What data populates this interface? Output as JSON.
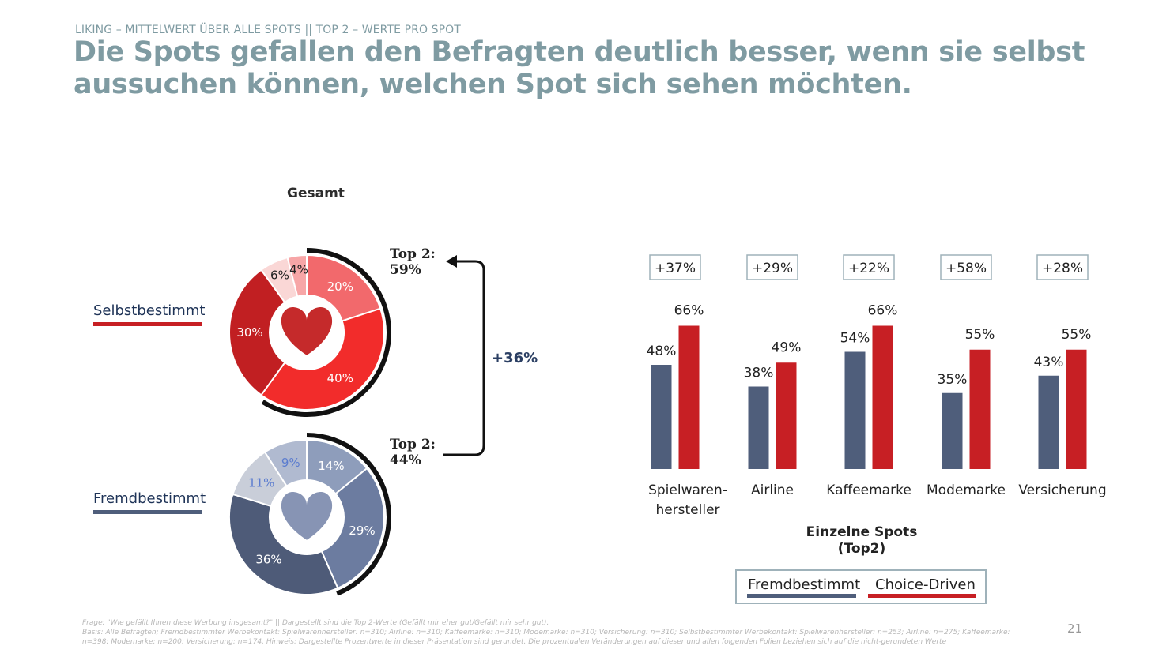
{
  "header": {
    "kicker": "LIKING – MITTELWERT ÜBER ALLE SPOTS || TOP 2 – WERTE PRO SPOT",
    "headline_line1": "Die Spots gefallen den Befragten deutlich besser, wenn sie selbst",
    "headline_line2": "aussuchen können, welchen Spot sich sehen möchten."
  },
  "overview": {
    "title": "Gesamt",
    "selbst_label": "Selbstbestimmt",
    "fremd_label": "Fremdbestimmt",
    "top2_selbst_line1": "Top 2:",
    "top2_selbst_line2": "59%",
    "top2_fremd_line1": "Top 2:",
    "top2_fremd_line2": "44%",
    "delta": "+36%"
  },
  "colors": {
    "fremd": "#4f5e7b",
    "choice": "#c71f24",
    "title_teal": "#7f9ba2",
    "selbst_slices": [
      "#f2696c",
      "#f22c2b",
      "#c11f22",
      "#fad7d6",
      "#f7a6a7"
    ],
    "fremd_slices": [
      "#8e9dbb",
      "#6c7ca0",
      "#4e5b78",
      "#c9ced9",
      "#b0bad0"
    ],
    "selbst_heart": "#c52a2b",
    "fremd_heart": "#8794b4"
  },
  "chart_data": [
    {
      "type": "pie",
      "name": "Selbstbestimmt",
      "title": "Gesamt",
      "labels": [
        "20%",
        "40%",
        "30%",
        "6%",
        "4%"
      ],
      "values": [
        20,
        40,
        30,
        6,
        4
      ],
      "top2": 59
    },
    {
      "type": "pie",
      "name": "Fremdbestimmt",
      "labels": [
        "14%",
        "29%",
        "36%",
        "11%",
        "9%"
      ],
      "values": [
        14,
        29,
        36,
        11,
        9
      ],
      "top2": 44
    },
    {
      "type": "bar",
      "title": "Einzelne Spots (Top2)",
      "title_line1": "Einzelne Spots",
      "title_line2": "(Top2)",
      "categories": [
        "Spielwaren-hersteller",
        "Airline",
        "Kaffeemarke",
        "Modemarke",
        "Versicherung"
      ],
      "category_lines": [
        [
          "Spielwaren-",
          "hersteller"
        ],
        [
          "Airline"
        ],
        [
          "Kaffeemarke"
        ],
        [
          "Modemarke"
        ],
        [
          "Versicherung"
        ]
      ],
      "series": [
        {
          "name": "Fremdbestimmt",
          "values": [
            48,
            38,
            54,
            35,
            43
          ],
          "labels": [
            "48%",
            "38%",
            "54%",
            "35%",
            "43%"
          ]
        },
        {
          "name": "Choice-Driven",
          "values": [
            66,
            49,
            66,
            55,
            55
          ],
          "labels": [
            "66%",
            "49%",
            "66%",
            "55%",
            "55%"
          ]
        }
      ],
      "deltas": [
        "+37%",
        "+29%",
        "+22%",
        "+58%",
        "+28%"
      ],
      "ylim": [
        0,
        70
      ],
      "legend": [
        "Fremdbestimmt",
        "Choice-Driven"
      ]
    }
  ],
  "footer": {
    "frage": "Frage: \"Wie gefällt Ihnen diese Werbung insgesamt?\" || Dargestellt sind die Top 2-Werte (Gefällt mir eher gut/Gefällt mir sehr gut).",
    "basis": "Basis: Alle Befragten; Fremdbestimmter Werbekontakt: Spielwarenhersteller: n=310; Airline: n=310; Kaffeemarke: n=310; Modemarke: n=310; Versicherung: n=310; Selbstbestimmter Werbekontakt: Spielwarenhersteller: n=253; Airline: n=275; Kaffeemarke:",
    "basis2": "n=398; Modemarke: n=200; Versicherung: n=174. Hinweis: Dargestellte Prozentwerte in dieser Präsentation sind gerundet. Die prozentualen Veränderungen auf dieser und allen folgenden Folien beziehen sich auf die nicht-gerundeten Werte",
    "page": "21"
  }
}
